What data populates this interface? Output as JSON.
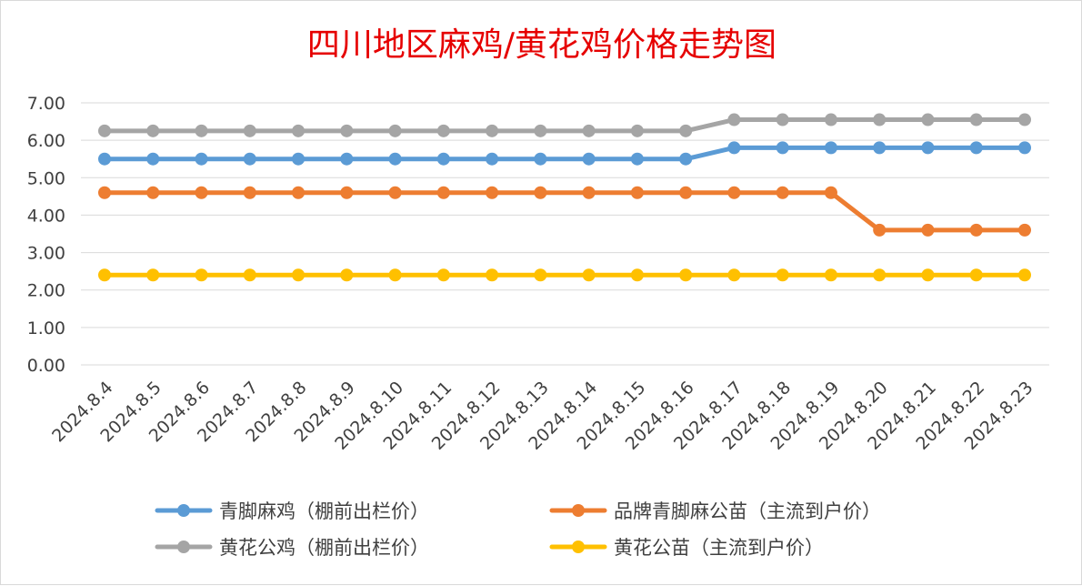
{
  "chart_data": {
    "type": "line",
    "title": "四川地区麻鸡/黄花鸡价格走势图",
    "xlabel": "",
    "ylabel": "",
    "ylim": [
      0,
      7
    ],
    "y_ticks": [
      "0.00",
      "1.00",
      "2.00",
      "3.00",
      "4.00",
      "5.00",
      "6.00",
      "7.00"
    ],
    "grid": true,
    "legend_position": "bottom",
    "categories": [
      "2024.8.4",
      "2024.8.5",
      "2024.8.6",
      "2024.8.7",
      "2024.8.8",
      "2024.8.9",
      "2024.8.10",
      "2024.8.11",
      "2024.8.12",
      "2024.8.13",
      "2024.8.14",
      "2024.8.15",
      "2024.8.16",
      "2024.8.17",
      "2024.8.18",
      "2024.8.19",
      "2024.8.20",
      "2024.8.21",
      "2024.8.22",
      "2024.8.23"
    ],
    "series": [
      {
        "name": "青脚麻鸡（棚前出栏价）",
        "color": "#5b9bd5",
        "values": [
          5.5,
          5.5,
          5.5,
          5.5,
          5.5,
          5.5,
          5.5,
          5.5,
          5.5,
          5.5,
          5.5,
          5.5,
          5.5,
          5.8,
          5.8,
          5.8,
          5.8,
          5.8,
          5.8,
          5.8
        ]
      },
      {
        "name": "品牌青脚麻公苗（主流到户价）",
        "color": "#ed7d31",
        "values": [
          4.6,
          4.6,
          4.6,
          4.6,
          4.6,
          4.6,
          4.6,
          4.6,
          4.6,
          4.6,
          4.6,
          4.6,
          4.6,
          4.6,
          4.6,
          4.6,
          3.6,
          3.6,
          3.6,
          3.6
        ]
      },
      {
        "name": "黄花公鸡（棚前出栏价）",
        "color": "#a5a5a5",
        "values": [
          6.25,
          6.25,
          6.25,
          6.25,
          6.25,
          6.25,
          6.25,
          6.25,
          6.25,
          6.25,
          6.25,
          6.25,
          6.25,
          6.55,
          6.55,
          6.55,
          6.55,
          6.55,
          6.55,
          6.55
        ]
      },
      {
        "name": "黄花公苗（主流到户价）",
        "color": "#ffc000",
        "values": [
          2.4,
          2.4,
          2.4,
          2.4,
          2.4,
          2.4,
          2.4,
          2.4,
          2.4,
          2.4,
          2.4,
          2.4,
          2.4,
          2.4,
          2.4,
          2.4,
          2.4,
          2.4,
          2.4,
          2.4
        ]
      }
    ]
  }
}
